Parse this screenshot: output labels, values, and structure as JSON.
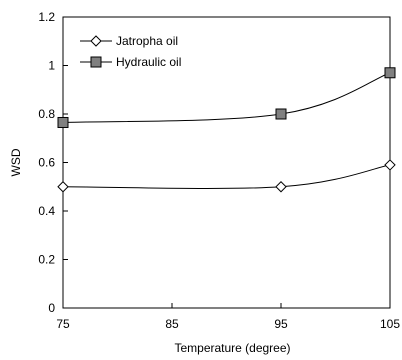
{
  "chart_data": {
    "type": "line",
    "title": "",
    "xlabel": "Temperature (degree)",
    "ylabel": "WSD",
    "x": [
      75,
      95,
      105
    ],
    "xlim": [
      75,
      105
    ],
    "xticks": [
      "75",
      "85",
      "95",
      "105"
    ],
    "ylim": [
      0,
      1.2
    ],
    "yticks": [
      "0",
      "0.2",
      "0.4",
      "0.6",
      "0.8",
      "1",
      "1.2"
    ],
    "grid": false,
    "legend_position": "top-left",
    "series": [
      {
        "name": "Jatropha oil",
        "marker": "diamond-open",
        "values": [
          0.5,
          0.5,
          0.59
        ]
      },
      {
        "name": "Hydraulic oil",
        "marker": "square-filled",
        "values": [
          0.765,
          0.8,
          0.97
        ]
      }
    ],
    "colors": {
      "line": "#000000",
      "square_fill": "#808080"
    }
  }
}
